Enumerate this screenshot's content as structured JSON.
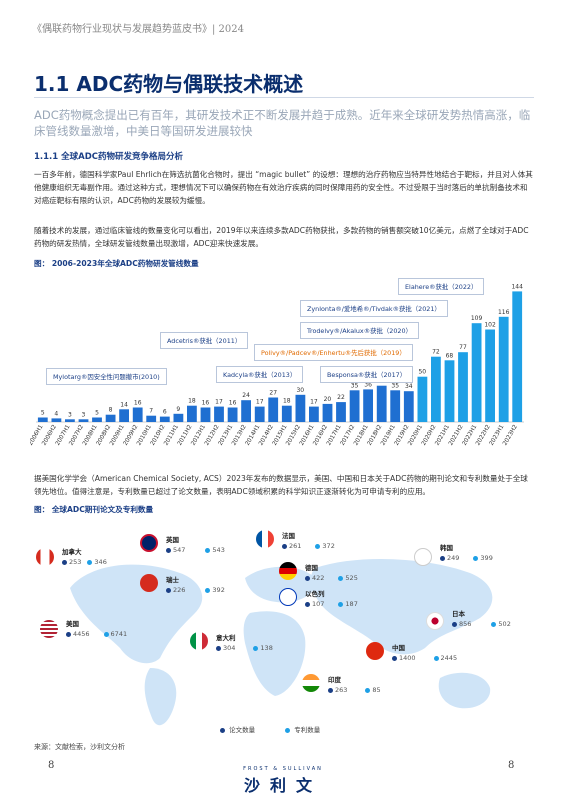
{
  "header": "《偶联药物行业现状与发展趋势蓝皮书》| 2024",
  "title": "1.1 ADC药物与偶联技术概述",
  "subtitle": "ADC药物概念提出已有百年，其研发技术正不断发展并趋于成熟。近年来全球研发势热情高涨，临床管线数量激增，中美日等国研发进展较快",
  "section": "1.1.1 全球ADC药物研发竞争格局分析",
  "para1": "一百多年前，德国科学家Paul Ehrlich在筛选抗菌化合物时，提出 “magic bullet” 的设想：理想的治疗药物应当特异性地结合于靶标，并且对人体其他健康组织无毒副作用。通过这种方式，理想情况下可以确保药物在有效治疗疾病的同时保障用药的安全性。不过受限于当时落后的单抗制备技术和对癌症靶标有限的认识，ADC药物的发展较为缓慢。",
  "para2": "随着技术的发展，通过临床管线的数量变化可以看出，2019年以来连续多款ADC药物获批，多款药物的销售额突破10亿美元，点燃了全球对于ADC药物的研发热情，全球研发管线数量出现激增，ADC迎来快速发展。",
  "fig1_caption": "图： 2006-2023年全球ADC药物研发管线数量",
  "chart_data": {
    "type": "bar",
    "title": "2006-2023年全球ADC药物研发管线数量",
    "categories": [
      "2006H1",
      "2006H2",
      "2007H1",
      "2007H2",
      "2008H1",
      "2008H2",
      "2009H1",
      "2009H2",
      "2010H1",
      "2010H2",
      "2011H1",
      "2011H2",
      "2012H1",
      "2012H2",
      "2013H1",
      "2013H2",
      "2014H1",
      "2014H2",
      "2015H1",
      "2015H2",
      "2016H1",
      "2016H2",
      "2017H1",
      "2017H2",
      "2018H1",
      "2018H2",
      "2019H1",
      "2019H2",
      "2020H1",
      "2020H2",
      "2021H1",
      "2021H2",
      "2022H1",
      "2022H2",
      "2023H1",
      "2023H2"
    ],
    "values": [
      5,
      4,
      3,
      3,
      5,
      8,
      14,
      16,
      7,
      6,
      9,
      18,
      16,
      17,
      16,
      24,
      17,
      27,
      18,
      30,
      17,
      20,
      22,
      35,
      36,
      40,
      35,
      34,
      50,
      72,
      68,
      77,
      109,
      102,
      116,
      144
    ],
    "ylim": [
      0,
      150
    ],
    "colors": {
      "old": "#1f6fd1",
      "new": "#1ea0e6",
      "grad_end": "#2bb3ef"
    },
    "annotations": [
      {
        "label": "Mylotarg®因安全性问题撤市(2010)",
        "color": "#1b3f86"
      },
      {
        "label": "Adcetris®获批（2011）",
        "color": "#1b3f86"
      },
      {
        "label": "Kadcyla®获批（2013）",
        "color": "#1b3f86"
      },
      {
        "label": "Besponsa®获批（2017）",
        "color": "#1b3f86"
      },
      {
        "label": "Polivy®/Padcev®/Enhertu®先后获批（2019）",
        "color": "#e06a00"
      },
      {
        "label": "Trodelvy®/Akalux®获批（2020）",
        "color": "#1b3f86"
      },
      {
        "label": "Zynlonta®/爱地希®/Tivdak®获批（2021）",
        "color": "#1b3f86"
      },
      {
        "label": "Elahere®获批（2022）",
        "color": "#1b3f86"
      }
    ]
  },
  "para3": "据美国化学学会（American Chemical Society, ACS）2023年发布的数据显示，美国、中国和日本关于ADC药物的期刊论文和专利数量处于全球领先地位。值得注意是，专利数量已超过了论文数量，表明ADC领域积累的科学知识正逐渐转化为可申请专利的应用。",
  "fig2_caption": "图： 全球ADC期刊论文及专利数量",
  "map": {
    "legend_papers": "论文数量",
    "legend_patents": "专利数量",
    "colors": {
      "papers": "#1b3f86",
      "patents": "#1ea0e6"
    },
    "countries": [
      {
        "name": "加拿大",
        "papers": "253",
        "patents": "346",
        "flag": "canada-flag-icon"
      },
      {
        "name": "英国",
        "papers": "547",
        "patents": "543",
        "flag": "uk-flag-icon"
      },
      {
        "name": "法国",
        "papers": "261",
        "patents": "372",
        "flag": "france-flag-icon"
      },
      {
        "name": "瑞士",
        "papers": "226",
        "patents": "392",
        "flag": "switzerland-flag-icon"
      },
      {
        "name": "德国",
        "papers": "422",
        "patents": "525",
        "flag": "germany-flag-icon"
      },
      {
        "name": "以色列",
        "papers": "107",
        "patents": "187",
        "flag": "israel-flag-icon"
      },
      {
        "name": "韩国",
        "papers": "249",
        "patents": "399",
        "flag": "korea-flag-icon"
      },
      {
        "name": "美国",
        "papers": "4456",
        "patents": "6741",
        "flag": "usa-flag-icon"
      },
      {
        "name": "日本",
        "papers": "856",
        "patents": "502",
        "flag": "japan-flag-icon"
      },
      {
        "name": "意大利",
        "papers": "304",
        "patents": "138",
        "flag": "italy-flag-icon"
      },
      {
        "name": "中国",
        "papers": "1400",
        "patents": "2445",
        "flag": "china-flag-icon"
      },
      {
        "name": "印度",
        "papers": "263",
        "patents": "85",
        "flag": "india-flag-icon"
      }
    ]
  },
  "source": "来源：文献检索，沙利文分析",
  "page_number": "8",
  "logo": {
    "top": "FROST & SULLIVAN",
    "main": "沙利文"
  }
}
